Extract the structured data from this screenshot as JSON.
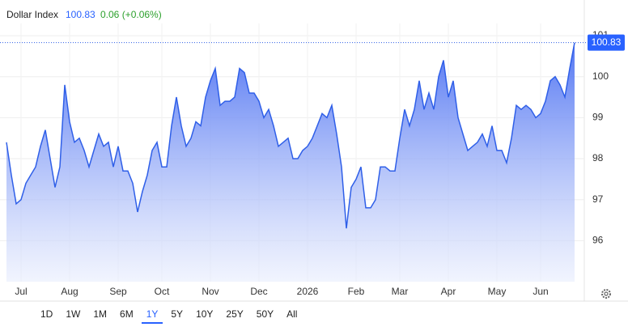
{
  "chart_data": {
    "type": "area",
    "title": "Dollar Index",
    "price": "100.83",
    "change": "0.06 (+0.06%)",
    "color": "#2f5fe8",
    "categories": [
      null,
      null,
      null,
      "Jul",
      null,
      null,
      null,
      null,
      null,
      null,
      null,
      null,
      null,
      "Aug",
      null,
      null,
      null,
      null,
      null,
      null,
      null,
      null,
      null,
      "Sep",
      null,
      null,
      null,
      null,
      null,
      null,
      null,
      null,
      "Oct",
      null,
      null,
      null,
      null,
      null,
      null,
      null,
      null,
      null,
      "Nov",
      null,
      null,
      null,
      null,
      null,
      null,
      null,
      null,
      null,
      "Dec",
      null,
      null,
      null,
      null,
      null,
      null,
      null,
      null,
      null,
      "2026",
      null,
      null,
      null,
      null,
      null,
      null,
      null,
      null,
      null,
      "Feb",
      null,
      null,
      null,
      null,
      null,
      null,
      null,
      null,
      "Mar",
      null,
      null,
      null,
      null,
      null,
      null,
      null,
      null,
      null,
      "Apr",
      null,
      null,
      null,
      null,
      null,
      null,
      null,
      null,
      null,
      "May",
      null,
      null,
      null,
      null,
      null,
      null,
      null,
      null,
      "Jun",
      null,
      null,
      null,
      null,
      null,
      null,
      null
    ],
    "values": [
      98.4,
      97.6,
      96.9,
      97.0,
      97.4,
      97.6,
      97.8,
      98.3,
      98.7,
      98.0,
      97.3,
      97.8,
      99.8,
      98.9,
      98.4,
      98.5,
      98.2,
      97.8,
      98.2,
      98.6,
      98.3,
      98.4,
      97.8,
      98.3,
      97.7,
      97.7,
      97.4,
      96.7,
      97.2,
      97.6,
      98.2,
      98.4,
      97.8,
      97.8,
      98.8,
      99.5,
      98.8,
      98.3,
      98.5,
      98.9,
      98.8,
      99.5,
      99.9,
      100.2,
      99.3,
      99.4,
      99.4,
      99.5,
      100.2,
      100.1,
      99.6,
      99.6,
      99.4,
      99.0,
      99.2,
      98.8,
      98.3,
      98.4,
      98.5,
      98.0,
      98.0,
      98.2,
      98.3,
      98.5,
      98.8,
      99.1,
      99.0,
      99.3,
      98.6,
      97.8,
      96.3,
      97.3,
      97.5,
      97.8,
      96.8,
      96.8,
      97.0,
      97.8,
      97.8,
      97.7,
      97.7,
      98.5,
      99.2,
      98.8,
      99.2,
      99.9,
      99.2,
      99.6,
      99.2,
      100.0,
      100.4,
      99.5,
      99.9,
      99.0,
      98.6,
      98.2,
      98.3,
      98.4,
      98.6,
      98.3,
      98.8,
      98.2,
      98.2,
      97.9,
      98.5,
      99.3,
      99.2,
      99.3,
      99.2,
      99.0,
      99.1,
      99.4,
      99.9,
      100.0,
      99.8,
      99.5,
      100.2,
      100.83
    ],
    "ylim": [
      95,
      101.1
    ],
    "yticks": [
      96,
      97,
      98,
      99,
      100,
      101
    ],
    "grid": true,
    "ranges": [
      "1D",
      "1W",
      "1M",
      "6M",
      "1Y",
      "5Y",
      "10Y",
      "25Y",
      "50Y",
      "All"
    ],
    "selected_range": "1Y"
  }
}
